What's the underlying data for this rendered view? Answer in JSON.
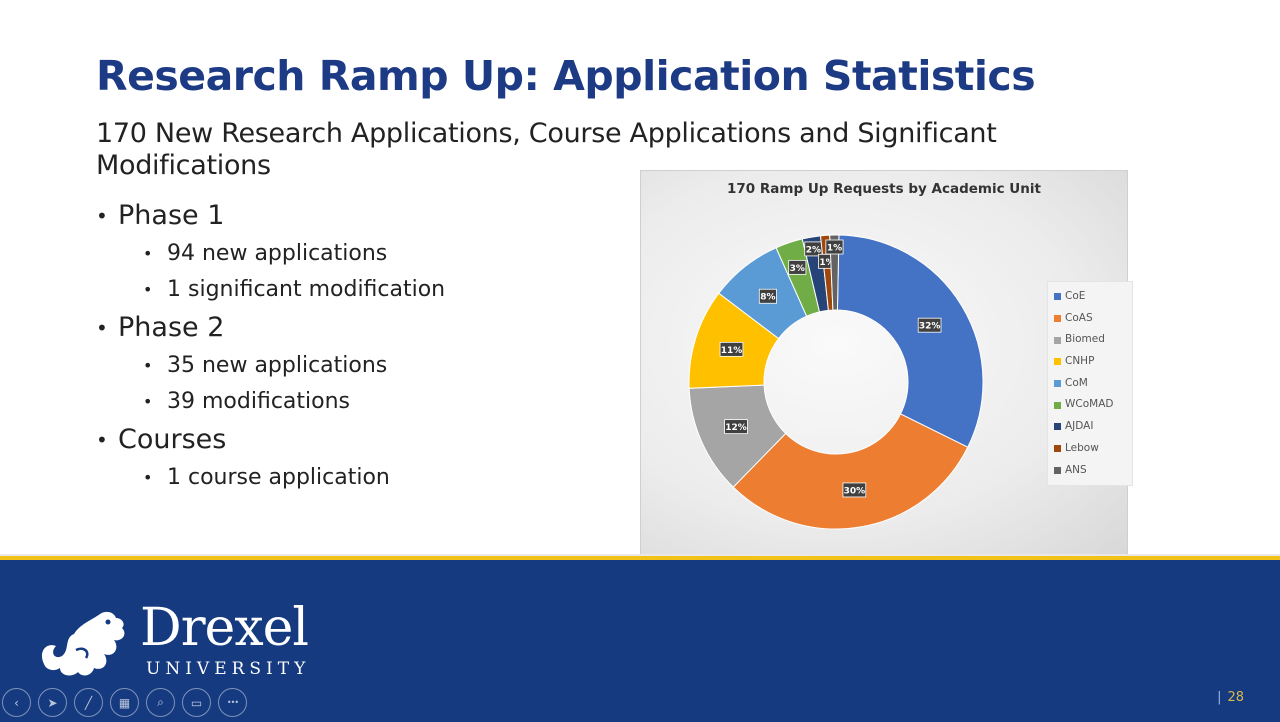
{
  "slide": {
    "title": "Research Ramp Up: Application Statistics",
    "subtitle": "170 New Research Applications, Course Applications and Significant Modifications",
    "bullets": [
      {
        "label": "Phase 1",
        "children": [
          "94 new applications",
          "1 significant modification"
        ]
      },
      {
        "label": "Phase 2",
        "children": [
          "35 new applications",
          "39 modifications"
        ]
      },
      {
        "label": "Courses",
        "children": [
          "1 course application"
        ]
      }
    ],
    "page_number": "28",
    "page_separator": "|"
  },
  "branding": {
    "logo_word": "Drexel",
    "logo_sub": "UNIVERSITY",
    "colors": {
      "navy": "#153a80",
      "gold": "#f2c21b",
      "title_blue": "#1d3a85"
    }
  },
  "toolbar": {
    "buttons": [
      {
        "name": "previous-slide-button",
        "icon": "‹"
      },
      {
        "name": "pointer-button",
        "icon": "➤"
      },
      {
        "name": "pen-button",
        "icon": "╱"
      },
      {
        "name": "all-slides-button",
        "icon": "▦"
      },
      {
        "name": "zoom-button",
        "icon": "⌕"
      },
      {
        "name": "subtitles-button",
        "icon": "▭"
      },
      {
        "name": "more-options-button",
        "icon": "•••"
      }
    ]
  },
  "chart_data": {
    "type": "pie",
    "variant": "doughnut",
    "title": "170 Ramp Up Requests by Academic Unit",
    "categories": [
      "CoE",
      "CoAS",
      "Biomed",
      "CNHP",
      "CoM",
      "WCoMAD",
      "AJDAI",
      "Lebow",
      "ANS"
    ],
    "values": [
      32,
      30,
      12,
      11,
      8,
      3,
      2,
      1,
      1
    ],
    "labels": [
      "32%",
      "30%",
      "12%",
      "11%",
      "8%",
      "3%",
      "2%",
      "1%",
      "1%"
    ],
    "colors": [
      "#4472c4",
      "#ed7d31",
      "#a5a5a5",
      "#ffc000",
      "#5b9bd5",
      "#70ad47",
      "#264478",
      "#9e480e",
      "#636363"
    ],
    "legend_position": "right",
    "unit": "percent"
  }
}
